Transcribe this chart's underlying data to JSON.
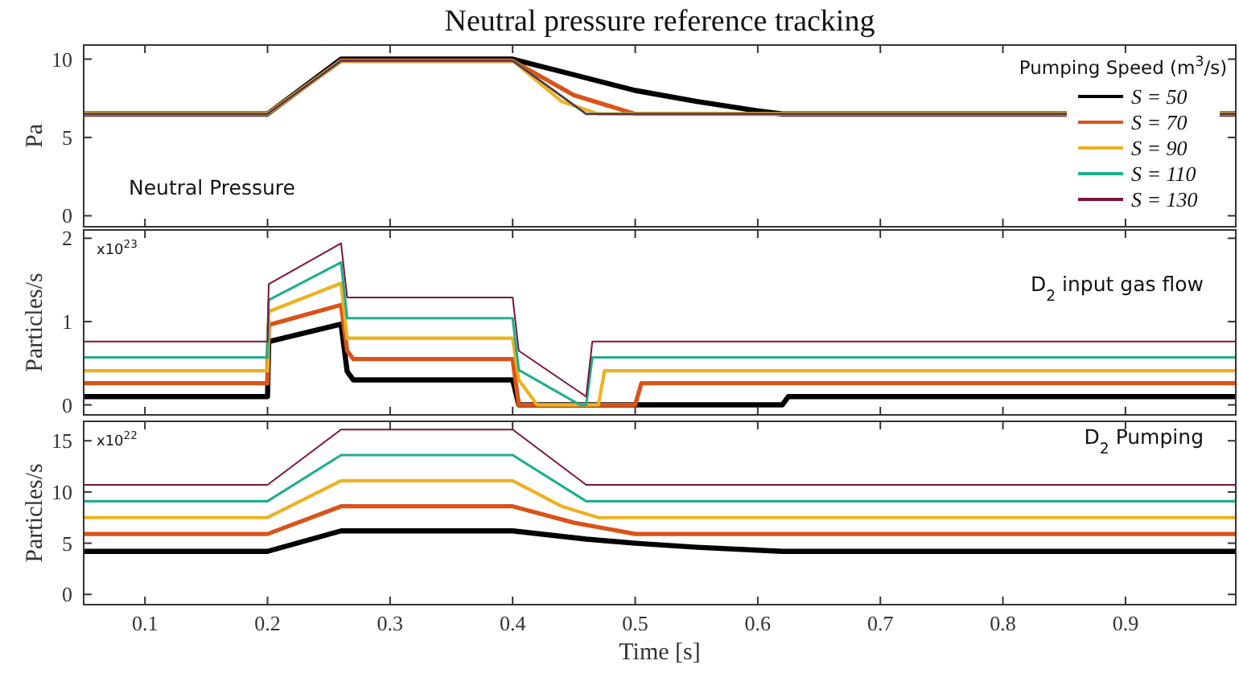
{
  "chart_data": [
    {
      "type": "line",
      "title": "Neutral pressure reference tracking",
      "ylabel": "Pa",
      "legend_title": "Pumping Speed (m$^{3}$/s)",
      "legend": "right",
      "grid": false,
      "tick_labels": "y",
      "xlim": [
        0.05,
        0.99
      ],
      "xticks": [
        {
          "value": 0.1,
          "label": null
        },
        {
          "value": 0.2,
          "label": null
        },
        {
          "value": 0.3,
          "label": null
        },
        {
          "value": 0.4,
          "label": null
        },
        {
          "value": 0.5,
          "label": null
        },
        {
          "value": 0.6,
          "label": null
        },
        {
          "value": 0.7,
          "label": null
        },
        {
          "value": 0.8,
          "label": null
        },
        {
          "value": 0.9,
          "label": null
        }
      ],
      "ylim": [
        -0.7,
        10.9
      ],
      "yticks": [
        0,
        5,
        10
      ],
      "annotations": [
        "Neutral Pressure"
      ],
      "series": [
        {
          "name": "S = 50",
          "color": "#000000",
          "x": [
            0.05,
            0.2,
            0.26,
            0.4,
            0.45,
            0.5,
            0.55,
            0.6,
            0.62,
            0.99
          ],
          "values": [
            6.5,
            6.5,
            10,
            10,
            9.0,
            8.0,
            7.3,
            6.7,
            6.5,
            6.5
          ]
        },
        {
          "name": "S = 70",
          "color": "#d95319",
          "x": [
            0.05,
            0.2,
            0.26,
            0.4,
            0.45,
            0.5,
            0.99
          ],
          "values": [
            6.5,
            6.5,
            9.9,
            9.9,
            7.7,
            6.5,
            6.5
          ]
        },
        {
          "name": "S = 90",
          "color": "#edb120",
          "x": [
            0.05,
            0.2,
            0.26,
            0.4,
            0.44,
            0.47,
            0.99
          ],
          "values": [
            6.5,
            6.5,
            9.9,
            9.9,
            7.3,
            6.5,
            6.5
          ]
        },
        {
          "name": "S = 110",
          "color": "#1fae8c",
          "x": [
            0.05,
            0.2,
            0.26,
            0.4,
            0.46,
            0.99
          ],
          "values": [
            6.5,
            6.5,
            9.9,
            9.9,
            6.5,
            6.5
          ]
        },
        {
          "name": "S = 130",
          "color": "#7e1436",
          "x": [
            0.05,
            0.2,
            0.26,
            0.4,
            0.46,
            0.99
          ],
          "values": [
            6.5,
            6.5,
            9.9,
            9.9,
            6.5,
            6.5
          ]
        }
      ]
    },
    {
      "type": "line",
      "ylabel": "Particles/s",
      "grid": false,
      "tick_labels": "y",
      "xlim": [
        0.05,
        0.99
      ],
      "xticks": [
        {
          "value": 0.1,
          "label": null
        },
        {
          "value": 0.2,
          "label": null
        },
        {
          "value": 0.3,
          "label": null
        },
        {
          "value": 0.4,
          "label": null
        },
        {
          "value": 0.5,
          "label": null
        },
        {
          "value": 0.6,
          "label": null
        },
        {
          "value": 0.7,
          "label": null
        },
        {
          "value": 0.8,
          "label": null
        },
        {
          "value": 0.9,
          "label": null
        }
      ],
      "ylim": [
        -0.12,
        2.1
      ],
      "yticks": [
        0,
        1,
        2
      ],
      "annotations": [
        "x10$^{23}$",
        "D$_{2}$ input gas flow"
      ],
      "series": [
        {
          "color": "#000000",
          "x": [
            0.05,
            0.2,
            0.201,
            0.26,
            0.265,
            0.27,
            0.4,
            0.405,
            0.62,
            0.625,
            0.99
          ],
          "values": [
            0.1,
            0.1,
            0.76,
            0.97,
            0.4,
            0.3,
            0.3,
            0,
            0,
            0.1,
            0.1
          ]
        },
        {
          "color": "#d95319",
          "x": [
            0.05,
            0.2,
            0.201,
            0.26,
            0.265,
            0.27,
            0.4,
            0.405,
            0.5,
            0.505,
            0.99
          ],
          "values": [
            0.26,
            0.26,
            0.96,
            1.2,
            0.65,
            0.55,
            0.55,
            0,
            0,
            0.26,
            0.26
          ]
        },
        {
          "color": "#edb120",
          "x": [
            0.05,
            0.2,
            0.201,
            0.26,
            0.265,
            0.4,
            0.405,
            0.42,
            0.47,
            0.475,
            0.99
          ],
          "values": [
            0.41,
            0.41,
            1.12,
            1.46,
            0.8,
            0.8,
            0.3,
            0,
            0,
            0.41,
            0.41
          ]
        },
        {
          "color": "#1fae8c",
          "x": [
            0.05,
            0.2,
            0.201,
            0.26,
            0.265,
            0.4,
            0.405,
            0.455,
            0.46,
            0.465,
            0.99
          ],
          "values": [
            0.57,
            0.57,
            1.26,
            1.71,
            1.04,
            1.04,
            0.42,
            0,
            0,
            0.57,
            0.57
          ]
        },
        {
          "color": "#7e1436",
          "x": [
            0.05,
            0.2,
            0.201,
            0.26,
            0.265,
            0.4,
            0.405,
            0.46,
            0.465,
            0.99
          ],
          "values": [
            0.76,
            0.76,
            1.45,
            1.94,
            1.29,
            1.29,
            0.65,
            0.1,
            0.76,
            0.76
          ]
        }
      ]
    },
    {
      "type": "line",
      "xlabel": "Time [s]",
      "ylabel": "Particles/s",
      "grid": false,
      "xlim": [
        0.05,
        0.99
      ],
      "xticks": [
        0.1,
        0.2,
        0.3,
        0.4,
        0.5,
        0.6,
        0.7,
        0.8,
        0.9
      ],
      "ylim": [
        -1,
        16.9
      ],
      "yticks": [
        0,
        5,
        10,
        15
      ],
      "annotations": [
        "x10$^{22}$",
        "D$_{2}$ Pumping"
      ],
      "series": [
        {
          "color": "#000000",
          "x": [
            0.05,
            0.2,
            0.26,
            0.4,
            0.46,
            0.5,
            0.55,
            0.62,
            0.99
          ],
          "values": [
            4.2,
            4.2,
            6.2,
            6.2,
            5.4,
            5.0,
            4.6,
            4.2,
            4.2
          ]
        },
        {
          "color": "#d95319",
          "x": [
            0.05,
            0.2,
            0.26,
            0.4,
            0.45,
            0.5,
            0.99
          ],
          "values": [
            5.9,
            5.9,
            8.6,
            8.6,
            7.0,
            5.9,
            5.9
          ]
        },
        {
          "color": "#edb120",
          "x": [
            0.05,
            0.2,
            0.26,
            0.4,
            0.44,
            0.47,
            0.99
          ],
          "values": [
            7.5,
            7.5,
            11.1,
            11.1,
            8.6,
            7.5,
            7.5
          ]
        },
        {
          "color": "#1fae8c",
          "x": [
            0.05,
            0.2,
            0.26,
            0.4,
            0.46,
            0.99
          ],
          "values": [
            9.1,
            9.1,
            13.6,
            13.6,
            9.1,
            9.1
          ]
        },
        {
          "color": "#7e1436",
          "x": [
            0.05,
            0.2,
            0.26,
            0.4,
            0.46,
            0.99
          ],
          "values": [
            10.7,
            10.7,
            16.1,
            16.1,
            10.7,
            10.7
          ]
        }
      ]
    }
  ]
}
